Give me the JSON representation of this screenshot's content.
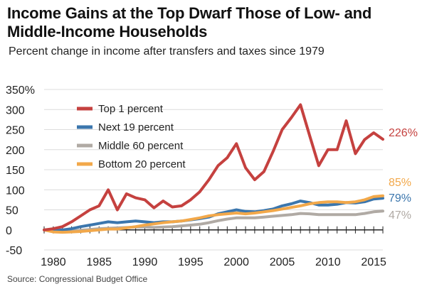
{
  "header": {
    "title": "Income Gains at the Top Dwarf Those of Low- and Middle-Income Households",
    "subtitle": "Percent change in income after transfers and taxes since 1979"
  },
  "footer": {
    "source": "Source: Congressional Budget Office"
  },
  "chart_data": {
    "type": "line",
    "title": "Income Gains at the Top Dwarf Those of Low- and Middle-Income Households",
    "subtitle": "Percent change in income after transfers and taxes since 1979",
    "xlabel": "",
    "ylabel": "",
    "xlim": [
      1979,
      2016
    ],
    "ylim": [
      -50,
      350
    ],
    "x_ticks": [
      1980,
      1985,
      1990,
      1995,
      2000,
      2005,
      2010,
      2015
    ],
    "y_ticks": [
      {
        "value": 350,
        "label": "350%"
      },
      {
        "value": 300,
        "label": "300"
      },
      {
        "value": 250,
        "label": "250"
      },
      {
        "value": 200,
        "label": "200"
      },
      {
        "value": 150,
        "label": "150"
      },
      {
        "value": 100,
        "label": "100"
      },
      {
        "value": 50,
        "label": "50"
      },
      {
        "value": 0,
        "label": "0"
      },
      {
        "value": -50,
        "label": "-50"
      }
    ],
    "grid": true,
    "legend_position": "top-left",
    "x": [
      1979,
      1980,
      1981,
      1982,
      1983,
      1984,
      1985,
      1986,
      1987,
      1988,
      1989,
      1990,
      1991,
      1992,
      1993,
      1994,
      1995,
      1996,
      1997,
      1998,
      1999,
      2000,
      2001,
      2002,
      2003,
      2004,
      2005,
      2006,
      2007,
      2008,
      2009,
      2010,
      2011,
      2012,
      2013,
      2014,
      2015,
      2016
    ],
    "series": [
      {
        "name": "Top 1 percent",
        "color": "#c5413f",
        "end_label": "226%",
        "values": [
          0,
          3,
          8,
          20,
          35,
          50,
          60,
          100,
          50,
          90,
          80,
          75,
          55,
          72,
          57,
          60,
          75,
          95,
          125,
          160,
          180,
          215,
          155,
          125,
          145,
          195,
          250,
          280,
          312,
          235,
          160,
          200,
          200,
          272,
          190,
          225,
          242,
          226
        ]
      },
      {
        "name": "Next 19 percent",
        "color": "#3b76ad",
        "end_label": "79%",
        "values": [
          0,
          -2,
          0,
          3,
          8,
          12,
          16,
          20,
          18,
          20,
          22,
          20,
          18,
          20,
          20,
          22,
          25,
          28,
          32,
          40,
          45,
          50,
          46,
          45,
          48,
          52,
          60,
          65,
          72,
          68,
          62,
          62,
          64,
          68,
          67,
          70,
          77,
          79
        ]
      },
      {
        "name": "Middle 60 percent",
        "color": "#b0aaa4",
        "end_label": "47%",
        "values": [
          0,
          -2,
          -4,
          -3,
          -1,
          1,
          3,
          4,
          5,
          6,
          7,
          7,
          6,
          7,
          8,
          10,
          12,
          14,
          18,
          23,
          27,
          30,
          30,
          30,
          32,
          34,
          36,
          38,
          41,
          40,
          38,
          38,
          38,
          38,
          38,
          41,
          45,
          47
        ]
      },
      {
        "name": "Bottom 20 percent",
        "color": "#f2a84a",
        "end_label": "85%",
        "values": [
          0,
          -5,
          -6,
          -5,
          -4,
          -2,
          0,
          2,
          2,
          5,
          8,
          12,
          15,
          18,
          20,
          22,
          26,
          30,
          35,
          38,
          40,
          42,
          40,
          42,
          45,
          48,
          52,
          56,
          60,
          65,
          68,
          70,
          70,
          68,
          70,
          75,
          83,
          85
        ]
      }
    ]
  }
}
